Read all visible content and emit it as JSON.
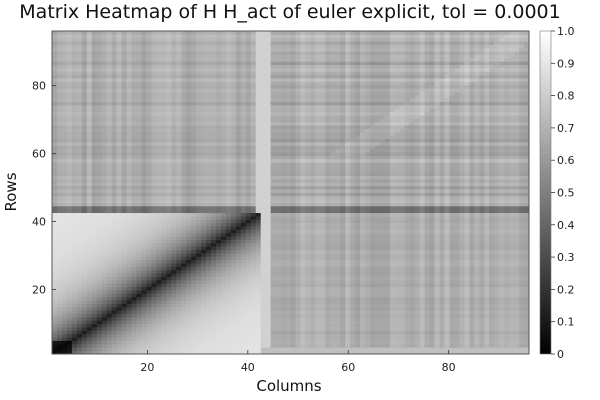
{
  "chart_data": {
    "type": "heatmap",
    "title": "Matrix Heatmap of H H_act of euler explicit, tol = 0.0001",
    "xlabel": "Columns",
    "ylabel": "Rows",
    "n_rows": 96,
    "n_cols": 96,
    "xlim": [
      1,
      96
    ],
    "ylim": [
      1,
      96
    ],
    "x_ticks": [
      20,
      40,
      60,
      80
    ],
    "y_ticks": [
      20,
      40,
      60,
      80
    ],
    "colorbar": {
      "range": [
        0,
        1
      ],
      "ticks": [
        0,
        0.1,
        0.2,
        0.3,
        0.4,
        0.5,
        0.6,
        0.7,
        0.8,
        0.9,
        1.0
      ],
      "tick_labels": [
        "0",
        "0.1",
        "0.2",
        "0.3",
        "0.4",
        "0.5",
        "0.6",
        "0.7",
        "0.8",
        "0.9",
        "1.0"
      ],
      "colormap": "grays",
      "position": "right"
    },
    "description_of_values": {
      "diagonal_block": "rows/cols 1-42: values ~0.1 on diagonal rising to ~0.9 away from it",
      "off_block": "remaining cells ~0.6-0.75 with column/row striping"
    },
    "grid": false
  }
}
